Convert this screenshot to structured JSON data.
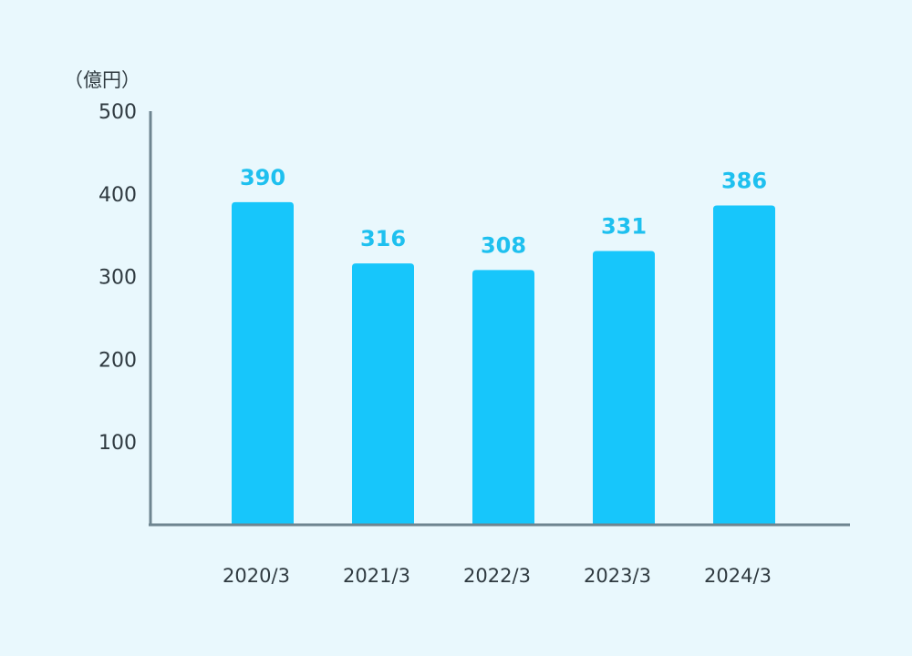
{
  "chart_data": {
    "type": "bar",
    "unit_label": "（億円）",
    "categories": [
      "2020/3",
      "2021/3",
      "2022/3",
      "2023/3",
      "2024/3"
    ],
    "values": [
      390,
      316,
      308,
      331,
      386
    ],
    "ylim": [
      0,
      500
    ],
    "yticks": [
      100,
      200,
      300,
      400,
      500
    ],
    "bar_color": "#17c6fb",
    "value_label_color": "#1ec0ef",
    "axis_color": "#6e8590",
    "grid": false,
    "legend": "none"
  }
}
